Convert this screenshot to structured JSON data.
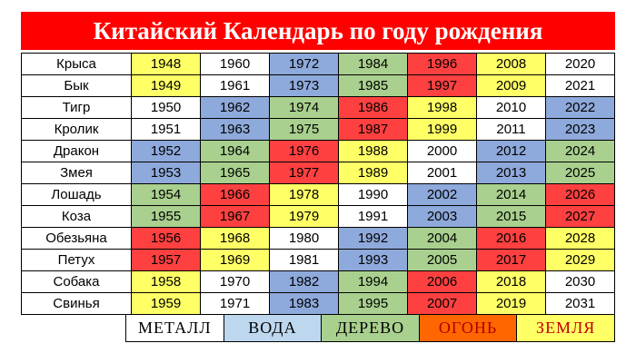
{
  "title": "Китайский Календарь по году рождения",
  "colors": {
    "title_bg": "#ff0000",
    "none": "#ffffff",
    "Y": "#ffff66",
    "B": "#8ea9db",
    "G": "#a9d08e",
    "R": "#ff4040",
    "metal": "#ffffff",
    "water": "#bdd7ee",
    "wood": "#a9d08e",
    "fire": "#ff6600",
    "earth": "#ffff66"
  },
  "rows": [
    {
      "animal": "Крыса",
      "years": [
        "1948",
        "1960",
        "1972",
        "1984",
        "1996",
        "2008",
        "2020"
      ],
      "colors": [
        "Y",
        "W",
        "B",
        "G",
        "R",
        "Y",
        "W"
      ]
    },
    {
      "animal": "Бык",
      "years": [
        "1949",
        "1961",
        "1973",
        "1985",
        "1997",
        "2009",
        "2021"
      ],
      "colors": [
        "Y",
        "W",
        "B",
        "G",
        "R",
        "Y",
        "W"
      ]
    },
    {
      "animal": "Тигр",
      "years": [
        "1950",
        "1962",
        "1974",
        "1986",
        "1998",
        "2010",
        "2022"
      ],
      "colors": [
        "W",
        "B",
        "G",
        "R",
        "Y",
        "W",
        "B"
      ]
    },
    {
      "animal": "Кролик",
      "years": [
        "1951",
        "1963",
        "1975",
        "1987",
        "1999",
        "2011",
        "2023"
      ],
      "colors": [
        "W",
        "B",
        "G",
        "R",
        "Y",
        "W",
        "B"
      ]
    },
    {
      "animal": "Дракон",
      "years": [
        "1952",
        "1964",
        "1976",
        "1988",
        "2000",
        "2012",
        "2024"
      ],
      "colors": [
        "B",
        "G",
        "R",
        "Y",
        "W",
        "B",
        "G"
      ]
    },
    {
      "animal": "Змея",
      "years": [
        "1953",
        "1965",
        "1977",
        "1989",
        "2001",
        "2013",
        "2025"
      ],
      "colors": [
        "B",
        "G",
        "R",
        "Y",
        "W",
        "B",
        "G"
      ]
    },
    {
      "animal": "Лошадь",
      "years": [
        "1954",
        "1966",
        "1978",
        "1990",
        "2002",
        "2014",
        "2026"
      ],
      "colors": [
        "G",
        "R",
        "Y",
        "W",
        "B",
        "G",
        "R"
      ]
    },
    {
      "animal": "Коза",
      "years": [
        "1955",
        "1967",
        "1979",
        "1991",
        "2003",
        "2015",
        "2027"
      ],
      "colors": [
        "G",
        "R",
        "Y",
        "W",
        "B",
        "G",
        "R"
      ]
    },
    {
      "animal": "Обезьяна",
      "years": [
        "1956",
        "1968",
        "1980",
        "1992",
        "2004",
        "2016",
        "2028"
      ],
      "colors": [
        "R",
        "Y",
        "W",
        "B",
        "G",
        "R",
        "Y"
      ]
    },
    {
      "animal": "Петух",
      "years": [
        "1957",
        "1969",
        "1981",
        "1993",
        "2005",
        "2017",
        "2029"
      ],
      "colors": [
        "R",
        "Y",
        "W",
        "B",
        "G",
        "R",
        "Y"
      ]
    },
    {
      "animal": "Собака",
      "years": [
        "1958",
        "1970",
        "1982",
        "1994",
        "2006",
        "2018",
        "2030"
      ],
      "colors": [
        "Y",
        "W",
        "B",
        "G",
        "R",
        "Y",
        "W"
      ]
    },
    {
      "animal": "Свинья",
      "years": [
        "1959",
        "1971",
        "1983",
        "1995",
        "2007",
        "2019",
        "2031"
      ],
      "colors": [
        "Y",
        "W",
        "B",
        "G",
        "R",
        "Y",
        "W"
      ]
    }
  ],
  "legend": [
    {
      "label": "МЕТАЛЛ",
      "color": "#ffffff",
      "text_color": "#000000"
    },
    {
      "label": "ВОДА",
      "color": "#bdd7ee",
      "text_color": "#000000"
    },
    {
      "label": "ДЕРЕВО",
      "color": "#a9d08e",
      "text_color": "#000000"
    },
    {
      "label": "ОГОНЬ",
      "color": "#ff6600",
      "text_color": "#b00000"
    },
    {
      "label": "ЗЕМЛЯ",
      "color": "#ffff66",
      "text_color": "#c00000"
    }
  ]
}
